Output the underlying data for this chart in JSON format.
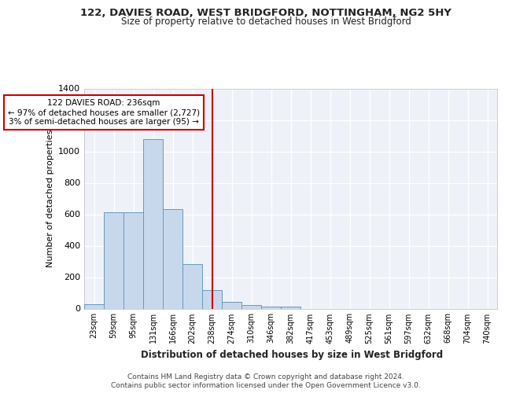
{
  "title_line1": "122, DAVIES ROAD, WEST BRIDGFORD, NOTTINGHAM, NG2 5HY",
  "title_line2": "Size of property relative to detached houses in West Bridgford",
  "xlabel": "Distribution of detached houses by size in West Bridgford",
  "ylabel": "Number of detached properties",
  "bin_labels": [
    "23sqm",
    "59sqm",
    "95sqm",
    "131sqm",
    "166sqm",
    "202sqm",
    "238sqm",
    "274sqm",
    "310sqm",
    "346sqm",
    "382sqm",
    "417sqm",
    "453sqm",
    "489sqm",
    "525sqm",
    "561sqm",
    "597sqm",
    "632sqm",
    "668sqm",
    "704sqm",
    "740sqm"
  ],
  "bar_values": [
    30,
    615,
    615,
    1080,
    635,
    285,
    120,
    45,
    25,
    15,
    15,
    0,
    0,
    0,
    0,
    0,
    0,
    0,
    0,
    0,
    0
  ],
  "bar_color": "#c8d8ec",
  "bar_edge_color": "#6699bb",
  "vline_index": 6,
  "vline_color": "#cc0000",
  "annotation_title": "122 DAVIES ROAD: 236sqm",
  "annotation_line2": "← 97% of detached houses are smaller (2,727)",
  "annotation_line3": "3% of semi-detached houses are larger (95) →",
  "annotation_box_edgecolor": "#cc0000",
  "ylim": [
    0,
    1400
  ],
  "yticks": [
    0,
    200,
    400,
    600,
    800,
    1000,
    1200,
    1400
  ],
  "background_color": "#eef2f8",
  "grid_color": "#ffffff",
  "footer_line1": "Contains HM Land Registry data © Crown copyright and database right 2024.",
  "footer_line2": "Contains public sector information licensed under the Open Government Licence v3.0."
}
